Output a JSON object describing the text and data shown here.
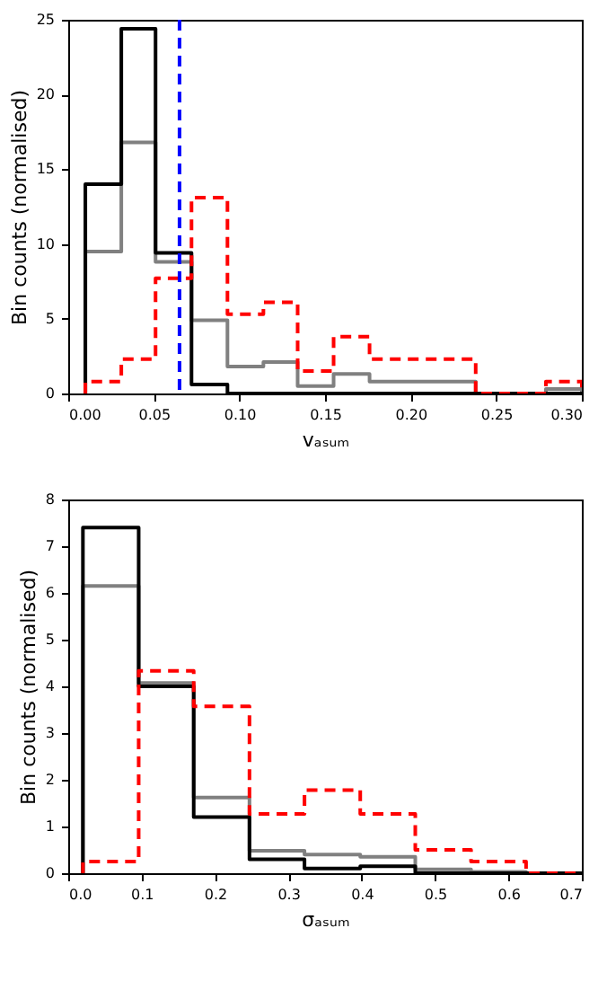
{
  "chart_data": [
    {
      "type": "histogram",
      "xlabel": "vₐₛᵤₘ",
      "ylabel": "Bin counts (normalised)",
      "xlim": [
        0,
        0.3
      ],
      "xticks": [
        {
          "value": 0,
          "label": "0.00"
        },
        0.05,
        {
          "value": 0.1,
          "label": "0.10"
        },
        0.15,
        {
          "value": 0.2,
          "label": "0.20"
        },
        0.25,
        {
          "value": 0.3,
          "label": "0.30"
        }
      ],
      "ylim": [
        0,
        25
      ],
      "yticks": [
        0,
        5,
        10,
        15,
        20,
        25
      ],
      "grid": false,
      "bins": [
        0.01,
        0.031,
        0.051,
        0.072,
        0.093,
        0.114,
        0.134,
        0.155,
        0.176,
        0.196,
        0.217,
        0.238,
        0.259,
        0.279,
        0.3
      ],
      "series": [
        {
          "color": "#808080",
          "line_style": "solid",
          "values": [
            9.5,
            16.8,
            8.8,
            4.9,
            1.8,
            2.1,
            0.5,
            1.3,
            0.8,
            0.8,
            0.8,
            0,
            0,
            0.3
          ]
        },
        {
          "color": "#000000",
          "line_style": "solid",
          "values": [
            14,
            24.4,
            9.4,
            0.6,
            0,
            0,
            0,
            0,
            0,
            0,
            0,
            0,
            0,
            0
          ]
        },
        {
          "color": "#ff0000",
          "line_style": "dashed",
          "values": [
            0.8,
            2.3,
            7.7,
            13.1,
            5.3,
            6.1,
            1.5,
            3.8,
            2.3,
            2.3,
            2.3,
            0,
            0,
            0.8
          ]
        }
      ],
      "ref_lines": [
        {
          "axis": "x",
          "value": 0.065,
          "color": "#0000ff",
          "line_style": "dashed"
        }
      ]
    },
    {
      "type": "histogram",
      "xlabel": "σₐₛᵤₘ",
      "ylabel": "Bin counts (normalised)",
      "xlim": [
        0,
        0.7
      ],
      "xticks": [
        {
          "value": 0,
          "label": "0.0"
        },
        0.1,
        0.2,
        0.3,
        0.4,
        0.5,
        0.6,
        0.7
      ],
      "ylim": [
        0,
        8
      ],
      "yticks": [
        0,
        1,
        2,
        3,
        4,
        5,
        6,
        7,
        8
      ],
      "grid": false,
      "bins": [
        0.02,
        0.096,
        0.171,
        0.247,
        0.322,
        0.398,
        0.473,
        0.549,
        0.624,
        0.7
      ],
      "series": [
        {
          "color": "#808080",
          "line_style": "solid",
          "values": [
            6.15,
            4.07,
            1.62,
            0.48,
            0.4,
            0.35,
            0.08,
            0.03,
            0
          ]
        },
        {
          "color": "#000000",
          "line_style": "solid",
          "values": [
            7.4,
            4.0,
            1.2,
            0.3,
            0.1,
            0.15,
            0,
            0,
            0
          ]
        },
        {
          "color": "#ff0000",
          "line_style": "dashed",
          "values": [
            0.25,
            4.33,
            3.57,
            1.27,
            1.78,
            1.27,
            0.5,
            0.25,
            0
          ]
        }
      ]
    }
  ]
}
